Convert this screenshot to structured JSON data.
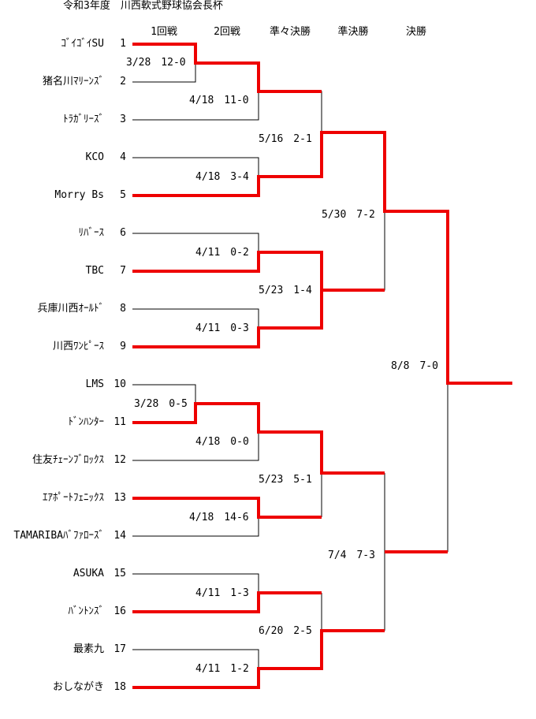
{
  "title": "令和3年度　川西軟式野球協会長杯",
  "rounds": [
    "1回戦",
    "2回戦",
    "準々決勝",
    "準決勝",
    "決勝"
  ],
  "teams": [
    {
      "no": "1",
      "name": "ｺﾞｲｺﾞｲSU"
    },
    {
      "no": "2",
      "name": "猪名川ﾏﾘｰﾝｽﾞ"
    },
    {
      "no": "3",
      "name": "ﾄﾗｶﾞﾘｰｽﾞ"
    },
    {
      "no": "4",
      "name": "KCO"
    },
    {
      "no": "5",
      "name": "Morry Bs"
    },
    {
      "no": "6",
      "name": "ﾘﾊﾞｰｽ"
    },
    {
      "no": "7",
      "name": "TBC"
    },
    {
      "no": "8",
      "name": "兵庫川西ｵｰﾙﾄﾞ"
    },
    {
      "no": "9",
      "name": "川西ﾜﾝﾋﾟｰｽ"
    },
    {
      "no": "10",
      "name": "LMS"
    },
    {
      "no": "11",
      "name": "ﾄﾞﾝﾊﾝﾀｰ"
    },
    {
      "no": "12",
      "name": "住友ﾁｪｰﾝﾌﾞﾛｯｸｽ"
    },
    {
      "no": "13",
      "name": "ｴｱﾎﾟｰﾄﾌｪﾆｯｸｽ"
    },
    {
      "no": "14",
      "name": "TAMARIBAﾊﾞﾌｧﾛｰｽﾞ"
    },
    {
      "no": "15",
      "name": "ASUKA"
    },
    {
      "no": "16",
      "name": "ﾊﾞﾝﾄﾝｽﾞ"
    },
    {
      "no": "17",
      "name": "最素九"
    },
    {
      "no": "18",
      "name": "おしながき"
    }
  ],
  "results": {
    "r1_a": "3/28　12-0",
    "r1_b": "3/28　0-5",
    "r2_1": "4/18　11-0",
    "r2_2": "4/18　3-4",
    "r2_3": "4/11　0-2",
    "r2_4": "4/11　0-3",
    "r2_5": "4/18　0-0",
    "r2_6": "4/18　14-6",
    "r2_7": "4/11　1-3",
    "r2_8": "4/11　1-2",
    "qf_1": "5/16　2-1",
    "qf_2": "5/23　1-4",
    "qf_3": "5/23　5-1",
    "qf_4": "6/20　2-5",
    "sf_1": "5/30　7-2",
    "sf_2": "7/4　7-3",
    "final": "8/8　7-0"
  },
  "colors": {
    "winner_line": "#ee0000",
    "line": "#000000"
  }
}
